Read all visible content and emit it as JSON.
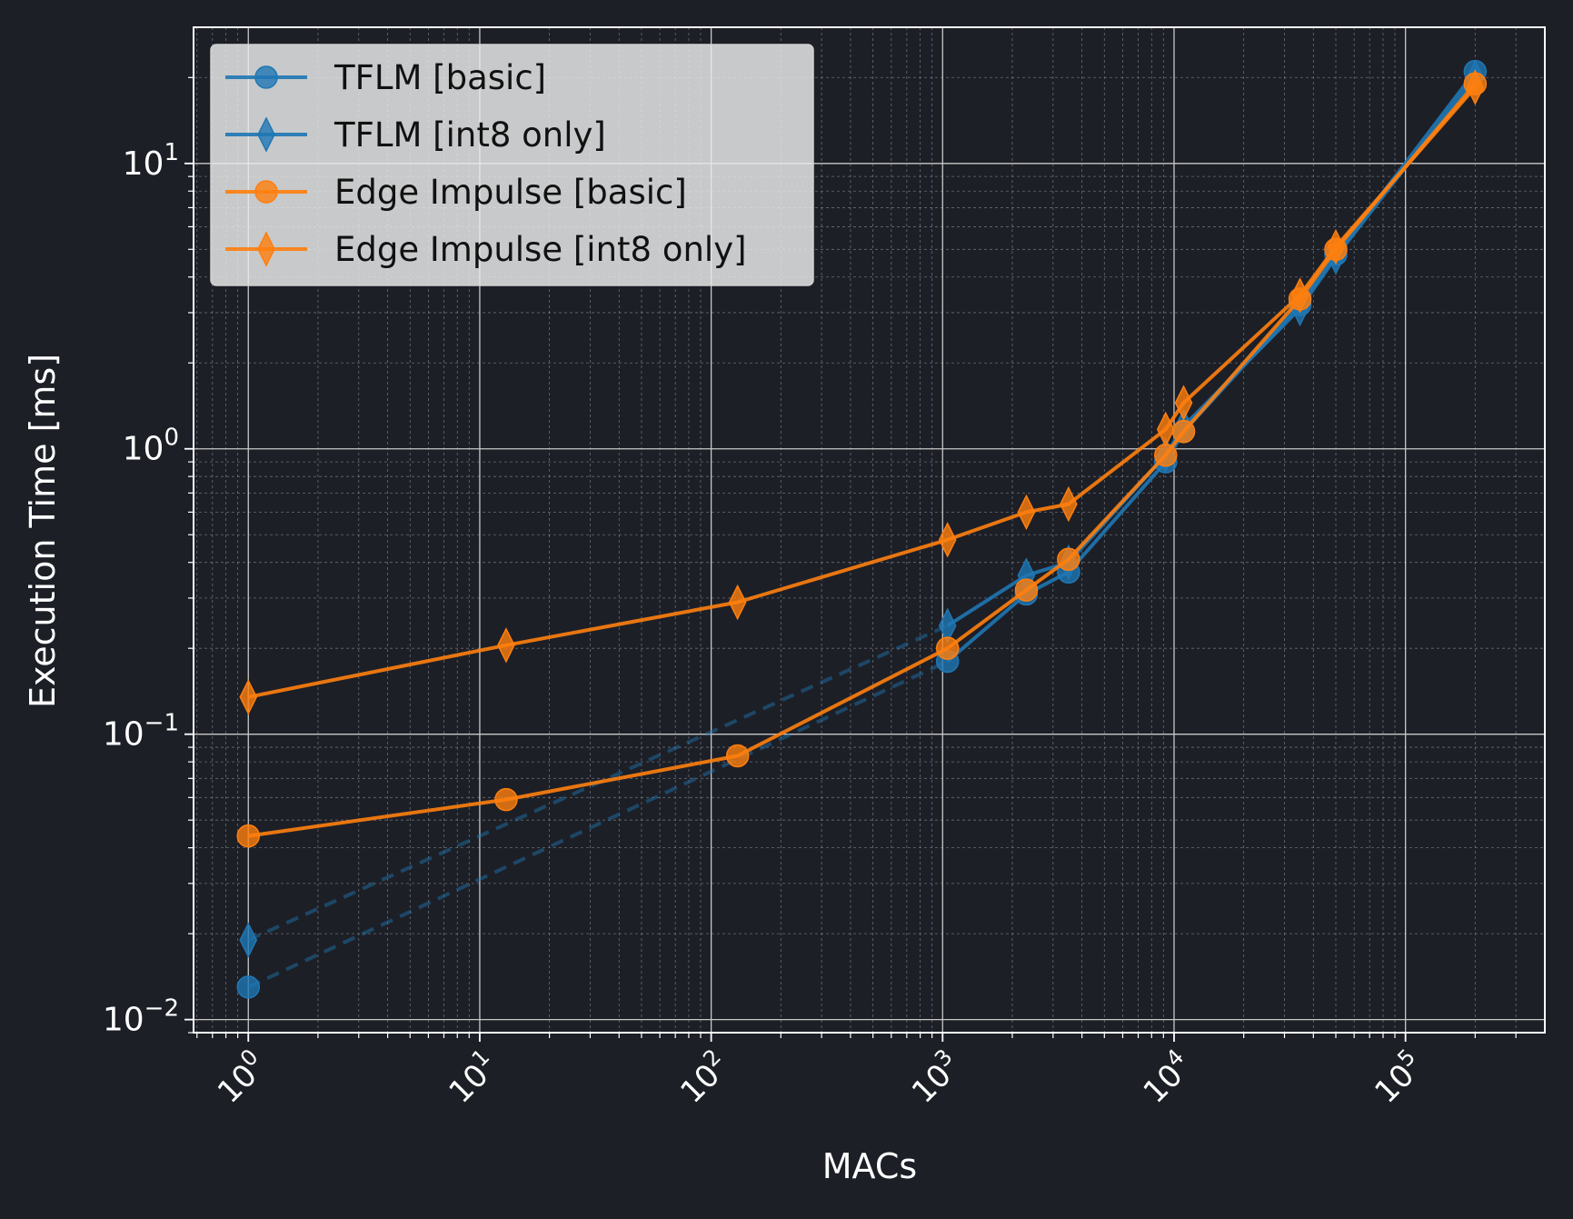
{
  "chart_data": {
    "type": "line",
    "title": "",
    "xlabel": "MACs",
    "ylabel": "Execution Time [ms]",
    "xscale": "log",
    "yscale": "log",
    "xlim": [
      0.58,
      400000
    ],
    "ylim": [
      0.009,
      30
    ],
    "grid": "major and minor",
    "legend_position": "top-left",
    "x_ticks": [
      {
        "value": 1,
        "base": "10",
        "exp": "0"
      },
      {
        "value": 10,
        "base": "10",
        "exp": "1"
      },
      {
        "value": 100,
        "base": "10",
        "exp": "2"
      },
      {
        "value": 1000,
        "base": "10",
        "exp": "3"
      },
      {
        "value": 10000,
        "base": "10",
        "exp": "4"
      },
      {
        "value": 100000,
        "base": "10",
        "exp": "5"
      }
    ],
    "y_ticks": [
      {
        "value": 0.01,
        "base": "10",
        "exp": "−2"
      },
      {
        "value": 0.1,
        "base": "10",
        "exp": "−1"
      },
      {
        "value": 1,
        "base": "10",
        "exp": "0"
      },
      {
        "value": 10,
        "base": "10",
        "exp": "1"
      }
    ],
    "colors": {
      "blue": "#1f77b4",
      "orange": "#ff7f0e",
      "background": "#1d1f27"
    },
    "series": [
      {
        "name": "TFLM [basic]",
        "color": "#1f77b4",
        "marker": "circle",
        "segments": [
          {
            "style": "dashed",
            "x": [
              1,
              1050
            ],
            "y": [
              0.013,
              0.18
            ]
          },
          {
            "style": "solid",
            "x": [
              1050,
              2300,
              3500,
              9200,
              11000,
              35000,
              50000,
              200000
            ],
            "y": [
              0.18,
              0.31,
              0.37,
              0.9,
              1.15,
              3.2,
              4.8,
              21
            ]
          }
        ]
      },
      {
        "name": "TFLM [int8 only]",
        "color": "#1f77b4",
        "marker": "diamond",
        "segments": [
          {
            "style": "dashed",
            "x": [
              1,
              1050
            ],
            "y": [
              0.019,
              0.24
            ]
          },
          {
            "style": "solid",
            "x": [
              1050,
              2300,
              3500,
              9200,
              11000,
              35000,
              50000,
              200000
            ],
            "y": [
              0.24,
              0.36,
              0.4,
              0.95,
              1.2,
              3.1,
              4.7,
              20
            ]
          }
        ]
      },
      {
        "name": "Edge Impulse [basic]",
        "color": "#ff7f0e",
        "marker": "circle",
        "segments": [
          {
            "style": "solid",
            "x": [
              1,
              13,
              130,
              1050,
              2300,
              3500,
              9200,
              11000,
              35000,
              50000,
              200000
            ],
            "y": [
              0.044,
              0.059,
              0.084,
              0.2,
              0.32,
              0.41,
              0.95,
              1.15,
              3.35,
              5.0,
              19
            ]
          }
        ]
      },
      {
        "name": "Edge Impulse [int8 only]",
        "color": "#ff7f0e",
        "marker": "diamond",
        "segments": [
          {
            "style": "solid",
            "x": [
              1,
              13,
              130,
              1050,
              2300,
              3500,
              9200,
              11000,
              35000,
              50000,
              200000
            ],
            "y": [
              0.135,
              0.205,
              0.29,
              0.48,
              0.6,
              0.64,
              1.17,
              1.45,
              3.45,
              5.1,
              18.5
            ]
          }
        ]
      }
    ]
  }
}
